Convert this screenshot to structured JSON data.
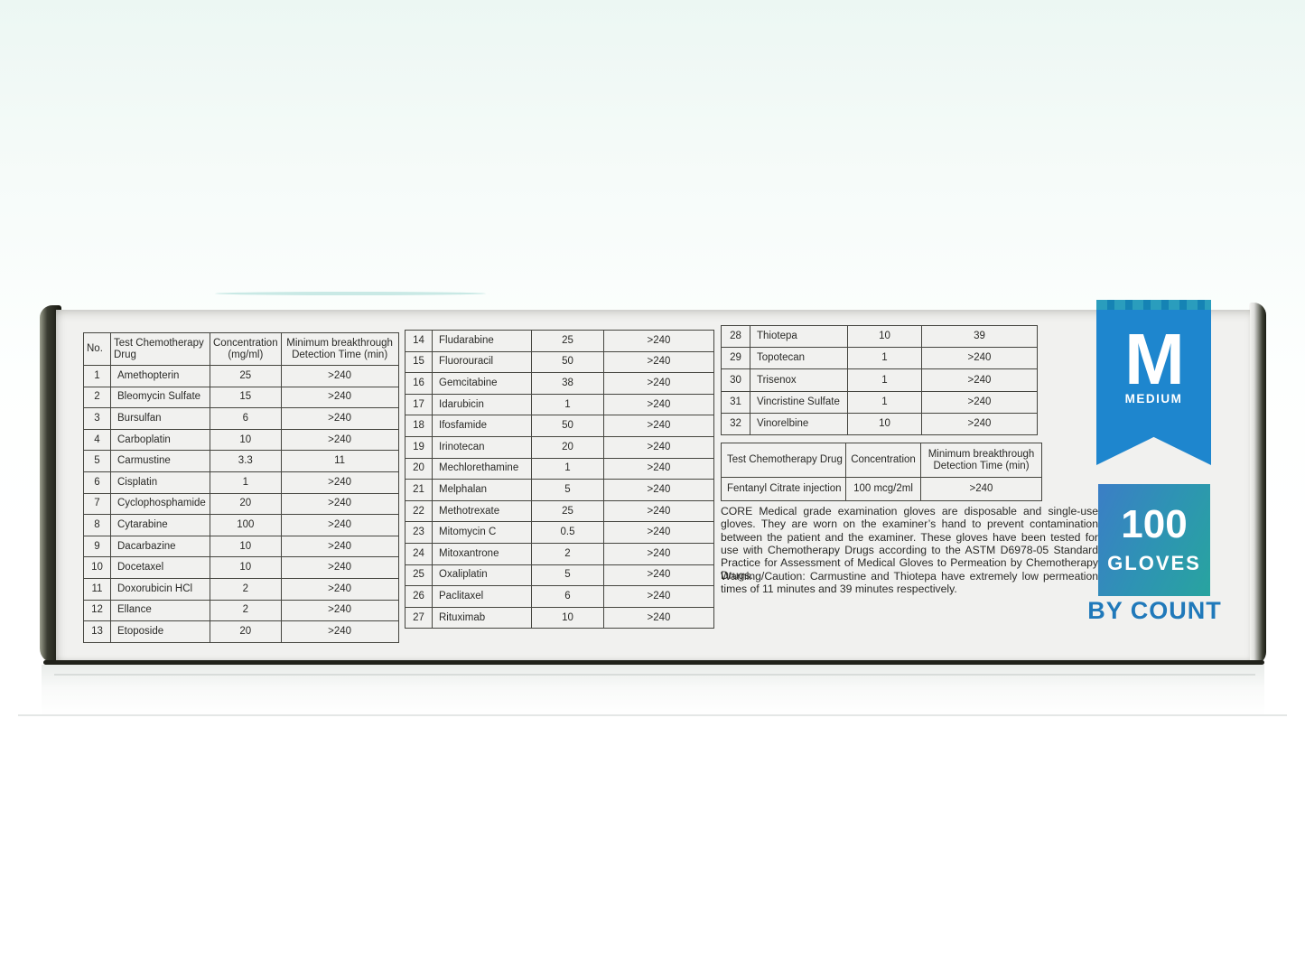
{
  "product": {
    "description": "CORE Medical grade examination gloves are disposable and single-use gloves. They are worn on the examiner’s hand to prevent contamination between the patient and the examiner. These gloves have been tested for use with Chemotherapy Drugs according to the ASTM D6978-05 Standard Practice for Assessment of Medical Gloves to Permeation by Chemotherapy Drugs.",
    "warning": "Warning/Caution: Carmustine and Thiotepa have extremely low permeation times of 11 minutes and 39 minutes respectively."
  },
  "size_badge": {
    "letter": "M",
    "label": "MEDIUM",
    "ribbon_color": "#1e86ce"
  },
  "count_badge": {
    "number": "100",
    "unit": "GLOVES",
    "caption": "BY COUNT",
    "gradient_start": "#3b7ec6",
    "gradient_mid": "#2e93b4",
    "gradient_end": "#28a49f",
    "caption_color": "#2079ba"
  },
  "drug_tables": {
    "headers": {
      "no": "No.",
      "drug": "Test Chemotherapy Drug",
      "concentration": "Concentration (mg/ml)",
      "detection": "Minimum breakthrough Detection Time (min)"
    },
    "part1_rows": [
      [
        "1",
        "Amethopterin",
        "25",
        ">240"
      ],
      [
        "2",
        "Bleomycin Sulfate",
        "15",
        ">240"
      ],
      [
        "3",
        "Bursulfan",
        "6",
        ">240"
      ],
      [
        "4",
        "Carboplatin",
        "10",
        ">240"
      ],
      [
        "5",
        "Carmustine",
        "3.3",
        "11"
      ],
      [
        "6",
        "Cisplatin",
        "1",
        ">240"
      ],
      [
        "7",
        "Cyclophosphamide",
        "20",
        ">240"
      ],
      [
        "8",
        "Cytarabine",
        "100",
        ">240"
      ],
      [
        "9",
        "Dacarbazine",
        "10",
        ">240"
      ],
      [
        "10",
        "Docetaxel",
        "10",
        ">240"
      ],
      [
        "11",
        "Doxorubicin HCl",
        "2",
        ">240"
      ],
      [
        "12",
        "Ellance",
        "2",
        ">240"
      ],
      [
        "13",
        "Etoposide",
        "20",
        ">240"
      ]
    ],
    "part2_rows": [
      [
        "14",
        "Fludarabine",
        "25",
        ">240"
      ],
      [
        "15",
        "Fluorouracil",
        "50",
        ">240"
      ],
      [
        "16",
        "Gemcitabine",
        "38",
        ">240"
      ],
      [
        "17",
        "Idarubicin",
        "1",
        ">240"
      ],
      [
        "18",
        "Ifosfamide",
        "50",
        ">240"
      ],
      [
        "19",
        "Irinotecan",
        "20",
        ">240"
      ],
      [
        "20",
        "Mechlorethamine",
        "1",
        ">240"
      ],
      [
        "21",
        "Melphalan",
        "5",
        ">240"
      ],
      [
        "22",
        "Methotrexate",
        "25",
        ">240"
      ],
      [
        "23",
        "Mitomycin C",
        "0.5",
        ">240"
      ],
      [
        "24",
        "Mitoxantrone",
        "2",
        ">240"
      ],
      [
        "25",
        "Oxaliplatin",
        "5",
        ">240"
      ],
      [
        "26",
        "Paclitaxel",
        "6",
        ">240"
      ],
      [
        "27",
        "Rituximab",
        "10",
        ">240"
      ]
    ],
    "part3_rows": [
      [
        "28",
        "Thiotepa",
        "10",
        "39"
      ],
      [
        "29",
        "Topotecan",
        "1",
        ">240"
      ],
      [
        "30",
        "Trisenox",
        "1",
        ">240"
      ],
      [
        "31",
        "Vincristine Sulfate",
        "1",
        ">240"
      ],
      [
        "32",
        "Vinorelbine",
        "10",
        ">240"
      ]
    ]
  },
  "fentanyl_table": {
    "headers": {
      "drug": "Test Chemotherapy Drug",
      "concentration": "Concentration",
      "detection": "Minimum breakthrough Detection Time (min)"
    },
    "rows": [
      [
        "Fentanyl Citrate injection",
        "100 mcg/2ml",
        ">240"
      ]
    ]
  }
}
